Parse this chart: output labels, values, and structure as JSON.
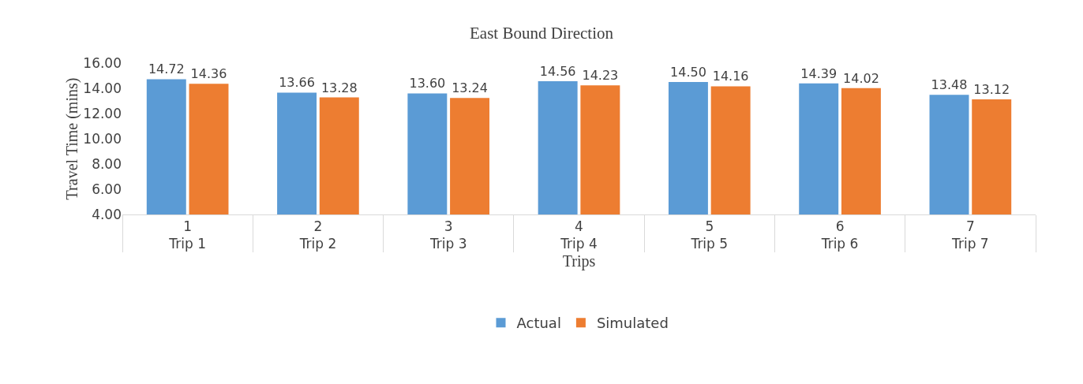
{
  "chart_data": {
    "type": "bar",
    "title": "East Bound Direction",
    "xlabel": "Trips",
    "ylabel": "Travel Time (mins)",
    "categories": [
      "1\nTrip 1",
      "2\nTrip 2",
      "3\nTrip 3",
      "4\nTrip 4",
      "5\nTrip 5",
      "6\nTrip 6",
      "7\nTrip 7"
    ],
    "series": [
      {
        "name": "Actual",
        "color": "#5b9bd5",
        "values": [
          14.72,
          13.66,
          13.6,
          14.56,
          14.5,
          14.39,
          13.48
        ],
        "value_labels": [
          "14.72",
          "13.66",
          "13.60",
          "14.56",
          "14.50",
          "14.39",
          "13.48"
        ]
      },
      {
        "name": "Simulated",
        "color": "#ed7d31",
        "values": [
          14.36,
          13.28,
          13.24,
          14.23,
          14.16,
          14.02,
          13.12
        ],
        "value_labels": [
          "14.36",
          "13.28",
          "13.24",
          "14.23",
          "14.16",
          "14.02",
          "13.12"
        ]
      }
    ],
    "ylim": [
      4,
      16
    ],
    "yticks": [
      {
        "value": 4,
        "label": "4.00"
      },
      {
        "value": 6,
        "label": "6.00"
      },
      {
        "value": 8,
        "label": "8.00"
      },
      {
        "value": 10,
        "label": "10.00"
      },
      {
        "value": 12,
        "label": "12.00"
      },
      {
        "value": 14,
        "label": "14.00"
      },
      {
        "value": 16,
        "label": "16.00"
      }
    ],
    "grid": false,
    "legend": "bottom"
  }
}
